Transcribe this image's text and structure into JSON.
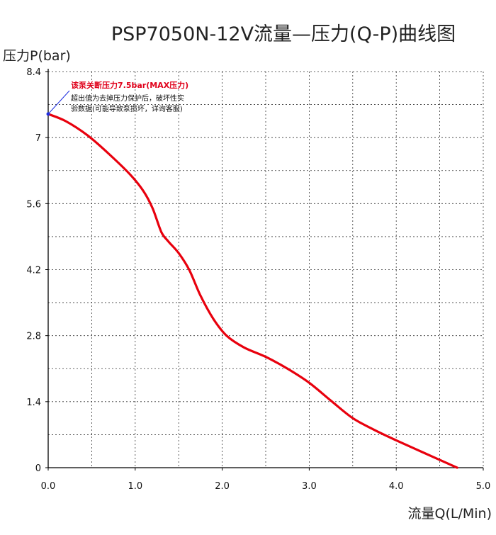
{
  "chart_data": {
    "type": "line",
    "title": "PSP7050N-12V流量—压力(Q-P)曲线图",
    "xlabel": "流量Q(L/Min)",
    "ylabel": "压力P(bar)",
    "xlim": [
      0,
      5
    ],
    "ylim": [
      0,
      8.4
    ],
    "x_ticks": [
      "0.0",
      "1.0",
      "2.0",
      "3.0",
      "4.0",
      "5.0"
    ],
    "y_ticks": [
      "0",
      "1.4",
      "2.8",
      "4.2",
      "5.6",
      "7",
      "8.4"
    ],
    "grid": true,
    "series": [
      {
        "color": "#e8000d",
        "x": [
          0.0,
          0.2,
          0.45,
          0.7,
          0.95,
          1.1,
          1.2,
          1.3,
          1.38,
          1.5,
          1.62,
          1.75,
          1.9,
          2.05,
          2.25,
          2.5,
          2.75,
          3.0,
          3.25,
          3.5,
          3.75,
          4.0,
          4.3,
          4.7
        ],
        "y": [
          7.5,
          7.35,
          7.05,
          6.65,
          6.2,
          5.85,
          5.5,
          5.0,
          4.8,
          4.55,
          4.2,
          3.65,
          3.15,
          2.8,
          2.55,
          2.35,
          2.1,
          1.8,
          1.42,
          1.05,
          0.8,
          0.58,
          0.33,
          0.0
        ]
      }
    ],
    "annotations": {
      "max_label": "该泵关断压力7.5bar(MAX压力)",
      "note_line1": "超出值为去掉压力保护后，破坏性实",
      "note_line2": "验数据(可能导致泵损坏，详询客服)",
      "max_point": {
        "x": 0.0,
        "y": 7.5
      }
    }
  }
}
